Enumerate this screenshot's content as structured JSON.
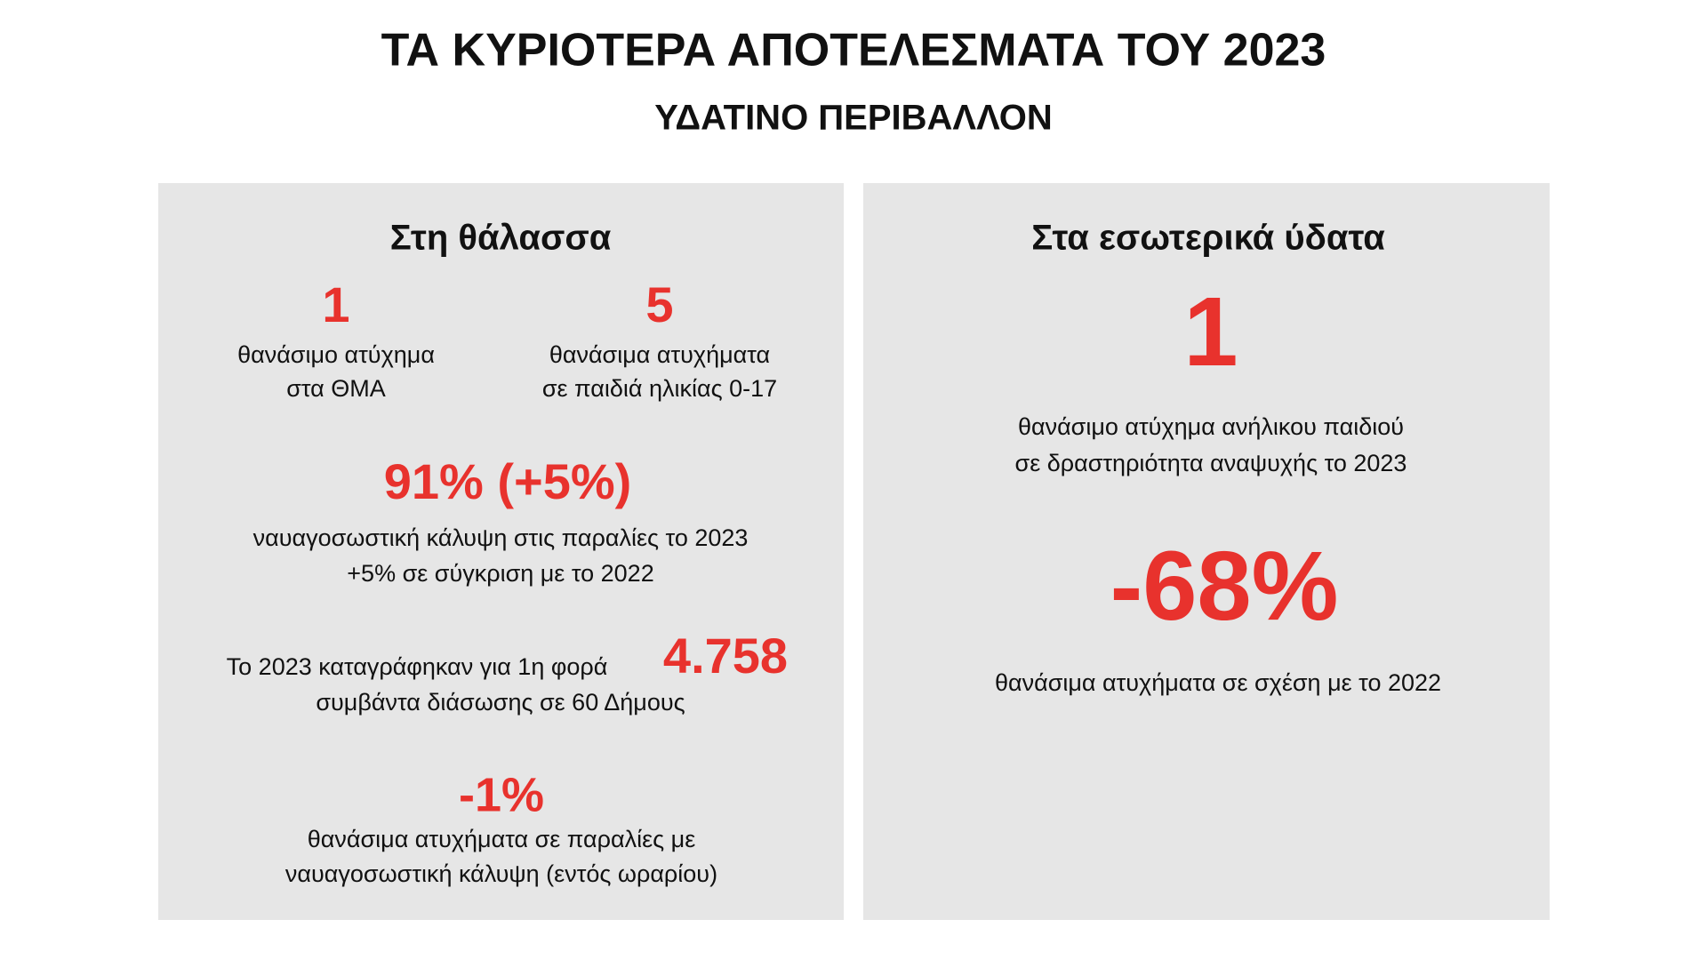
{
  "header": {
    "title": "ΤΑ ΚΥΡΙΟΤΕΡΑ ΑΠΟΤΕΛΕΣΜΑΤΑ ΤΟΥ 2023",
    "subtitle": "ΥΔΑΤΙΝΟ ΠΕΡΙΒΑΛΛΟΝ"
  },
  "panels": [
    {
      "heading": "Στη θάλασσα",
      "stats": [
        {
          "value": "1",
          "lines": [
            "θανάσιμο ατύχημα",
            "στα ΘΜΑ"
          ]
        },
        {
          "value": "5",
          "lines": [
            "θανάσιμα ατυχήματα",
            "σε παιδιά ηλικίας 0-17"
          ]
        },
        {
          "value": "91% (+5%)",
          "lines": [
            "ναυαγοσωστική κάλυψη στις παραλίες το 2023",
            "+5% σε σύγκριση με το 2022"
          ]
        },
        {
          "value": "4.758",
          "lines": [
            "Το 2023 καταγράφηκαν για 1η φορά",
            "συμβάντα διάσωσης σε 60 Δήμους"
          ]
        },
        {
          "value": "-1%",
          "lines": [
            "θανάσιμα ατυχήματα σε παραλίες με",
            "ναυαγοσωστική κάλυψη (εντός ωραρίου)"
          ]
        }
      ]
    },
    {
      "heading": "Στα εσωτερικά ύδατα",
      "stats": [
        {
          "value": "1",
          "lines": [
            "θανάσιμο ατύχημα ανήλικου παιδιού",
            "σε δραστηριότητα αναψυχής το 2023"
          ]
        },
        {
          "value": "-68%",
          "lines": [
            "θανάσιμα ατυχήματα σε σχέση με το 2022"
          ]
        }
      ]
    }
  ]
}
